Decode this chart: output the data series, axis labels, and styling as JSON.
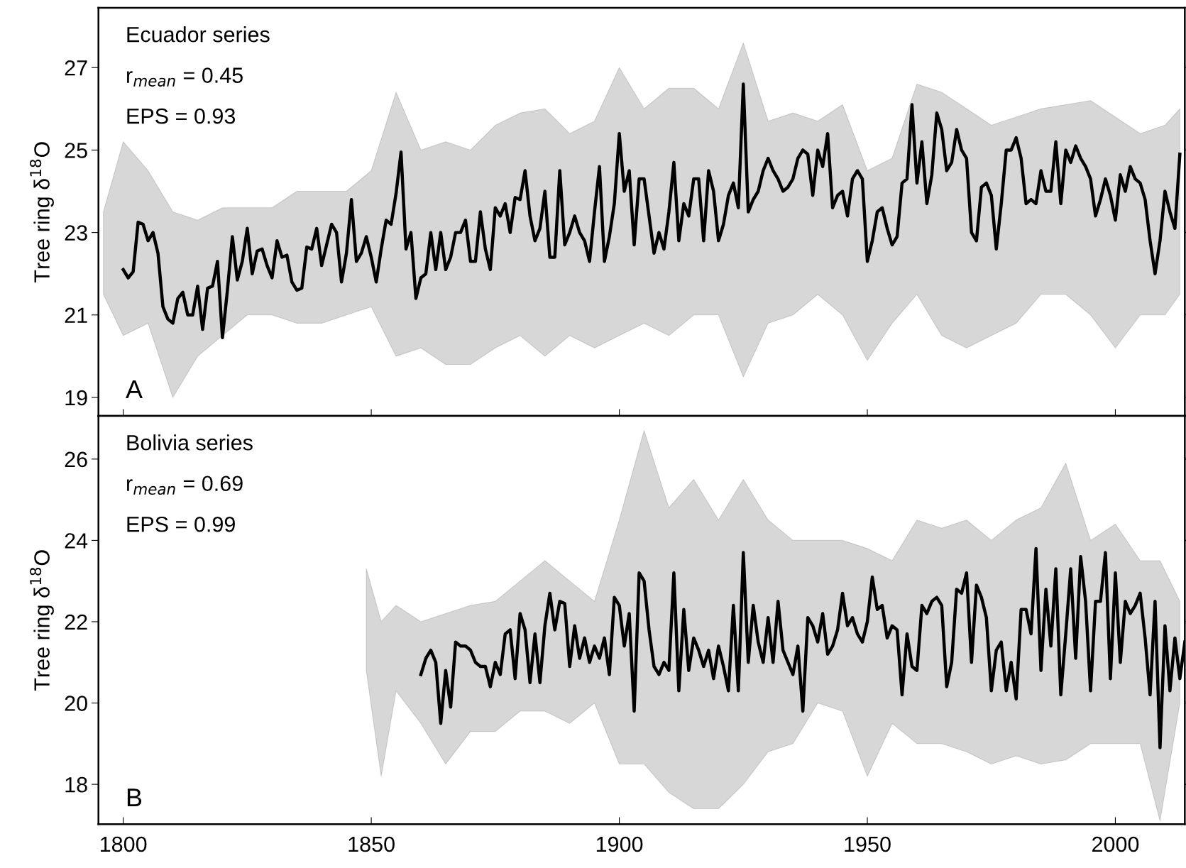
{
  "chart_data": [
    {
      "type": "line",
      "title": "Ecuador series",
      "ylabel": "Tree ring δ$^{18}$O",
      "annotations": [
        "r$_{mean}$ = 0.45",
        "EPS = 0.93",
        "A"
      ],
      "xlim": [
        1795,
        2014
      ],
      "xticks": [
        1800,
        1850,
        1900,
        1950,
        2000
      ],
      "ylim": [
        18.55,
        28.45
      ],
      "yticks": [
        19,
        21,
        23,
        25,
        27
      ],
      "tick_labels": "y",
      "grid": false,
      "legend": false,
      "series": [
        {
          "type": "area",
          "color": "#8c8c8c",
          "values": [
            null,
            null,
            null,
            null,
            null,
            null,
            null,
            null,
            null,
            null,
            null,
            null,
            null,
            null,
            null,
            null,
            null,
            null,
            null,
            null,
            null,
            null,
            null,
            null,
            null,
            null,
            null,
            null,
            null,
            null,
            null,
            null,
            null,
            null,
            null,
            null,
            null,
            null,
            null,
            null,
            null,
            null,
            null,
            null,
            null
          ],
          "x": [
            1796,
            1800,
            1805,
            1810,
            1815,
            1820,
            1825,
            1830,
            1835,
            1840,
            1845,
            1850,
            1855,
            1860,
            1865,
            1870,
            1875,
            1880,
            1885,
            1890,
            1895,
            1900,
            1905,
            1910,
            1915,
            1920,
            1925,
            1930,
            1935,
            1940,
            1945,
            1950,
            1955,
            1960,
            1965,
            1970,
            1975,
            1980,
            1985,
            1990,
            1995,
            2000,
            2005,
            2010,
            2013
          ],
          "lower": [
            21.5,
            20.5,
            20.8,
            19.0,
            20.0,
            20.5,
            21.0,
            21.0,
            20.8,
            20.8,
            21.0,
            21.2,
            20.0,
            20.2,
            19.8,
            19.8,
            20.2,
            20.5,
            20.0,
            20.5,
            20.2,
            20.5,
            20.8,
            20.5,
            21.0,
            21.0,
            19.5,
            20.8,
            21.0,
            21.5,
            21.0,
            19.9,
            20.8,
            21.5,
            20.5,
            20.2,
            20.5,
            20.8,
            21.5,
            21.5,
            21.0,
            20.2,
            21.0,
            21.0,
            21.5
          ],
          "upper": [
            23.5,
            25.2,
            24.5,
            23.5,
            23.3,
            23.6,
            23.6,
            23.6,
            24.0,
            24.0,
            24.0,
            24.5,
            26.4,
            25.0,
            25.2,
            25.0,
            25.6,
            25.9,
            26.0,
            25.4,
            25.7,
            27.0,
            26.0,
            26.5,
            26.5,
            26.0,
            27.6,
            25.7,
            25.9,
            25.7,
            26.1,
            24.5,
            24.8,
            26.6,
            26.4,
            26.0,
            25.6,
            25.8,
            26.0,
            26.1,
            26.2,
            25.8,
            25.4,
            25.6,
            26.0
          ]
        },
        {
          "color": "#000000",
          "x": [
            1800,
            1801,
            1802,
            1803,
            1804,
            1805,
            1806,
            1807,
            1808,
            1809,
            1810,
            1811,
            1812,
            1813,
            1814,
            1815,
            1816,
            1817,
            1818,
            1819,
            1820,
            1821,
            1822,
            1823,
            1824,
            1825,
            1826,
            1827,
            1828,
            1829,
            1830,
            1831,
            1832,
            1833,
            1834,
            1835,
            1836,
            1837,
            1838,
            1839,
            1840,
            1841,
            1842,
            1843,
            1844,
            1845,
            1846,
            1847,
            1848,
            1849,
            1850,
            1851,
            1852,
            1853,
            1854,
            1855,
            1856,
            1857,
            1858,
            1859,
            1860,
            1861,
            1862,
            1863,
            1864,
            1865,
            1866,
            1867,
            1868,
            1869,
            1870,
            1871,
            1872,
            1873,
            1874,
            1875,
            1876,
            1877,
            1878,
            1879,
            1880,
            1881,
            1882,
            1883,
            1884,
            1885,
            1886,
            1887,
            1888,
            1889,
            1890,
            1891,
            1892,
            1893,
            1894,
            1895,
            1896,
            1897,
            1898,
            1899,
            1900,
            1901,
            1902,
            1903,
            1904,
            1905,
            1906,
            1907,
            1908,
            1909,
            1910,
            1911,
            1912,
            1913,
            1914,
            1915,
            1916,
            1917,
            1918,
            1919,
            1920,
            1921,
            1922,
            1923,
            1924,
            1925,
            1926,
            1927,
            1928,
            1929,
            1930,
            1931,
            1932,
            1933,
            1934,
            1935,
            1936,
            1937,
            1938,
            1939,
            1940,
            1941,
            1942,
            1943,
            1944,
            1945,
            1946,
            1947,
            1948,
            1949,
            1950,
            1951,
            1952,
            1953,
            1954,
            1955,
            1956,
            1957,
            1958,
            1959,
            1960,
            1961,
            1962,
            1963,
            1964,
            1965,
            1966,
            1967,
            1968,
            1969,
            1970,
            1971,
            1972,
            1973,
            1974,
            1975,
            1976,
            1977,
            1978,
            1979,
            1980,
            1981,
            1982,
            1983,
            1984,
            1985,
            1986,
            1987,
            1988,
            1989,
            1990,
            1991,
            1992,
            1993,
            1994,
            1995,
            1996,
            1997,
            1998,
            1999,
            2000,
            2001,
            2002,
            2003,
            2004,
            2005,
            2006,
            2007,
            2008,
            2009,
            2010,
            2011,
            2012,
            2013
          ],
          "values": [
            22.1,
            21.9,
            22.05,
            23.25,
            23.2,
            22.8,
            23.0,
            22.5,
            21.2,
            20.9,
            20.8,
            21.4,
            21.55,
            21.0,
            21.0,
            21.7,
            20.65,
            21.65,
            21.7,
            22.3,
            20.45,
            21.6,
            22.9,
            21.85,
            22.3,
            23.1,
            22.0,
            22.55,
            22.6,
            22.2,
            21.9,
            22.8,
            22.4,
            22.45,
            21.8,
            21.6,
            21.65,
            22.65,
            22.6,
            23.1,
            22.2,
            22.7,
            23.2,
            23.0,
            21.8,
            22.5,
            23.8,
            22.3,
            22.5,
            22.9,
            22.4,
            21.8,
            22.6,
            23.3,
            23.2,
            23.95,
            24.95,
            22.6,
            23.0,
            21.4,
            21.9,
            22.0,
            23.0,
            22.1,
            23.0,
            22.1,
            22.4,
            23.0,
            23.0,
            23.3,
            22.3,
            22.3,
            23.5,
            22.6,
            22.1,
            23.6,
            23.4,
            23.7,
            23.0,
            23.85,
            23.8,
            24.5,
            23.4,
            22.8,
            23.1,
            24.0,
            22.4,
            22.4,
            24.5,
            22.7,
            23.0,
            23.4,
            23.0,
            22.8,
            22.3,
            23.5,
            24.6,
            22.3,
            22.9,
            23.7,
            25.4,
            24.0,
            24.5,
            22.7,
            24.3,
            24.3,
            23.4,
            22.5,
            23.0,
            22.6,
            23.5,
            24.7,
            22.8,
            23.7,
            23.4,
            24.3,
            24.3,
            22.8,
            24.5,
            24.0,
            22.8,
            23.2,
            23.9,
            24.2,
            23.6,
            26.6,
            23.5,
            23.8,
            24.0,
            24.5,
            24.8,
            24.5,
            24.3,
            24.0,
            24.1,
            24.3,
            24.8,
            25.0,
            24.9,
            23.9,
            25.0,
            24.6,
            25.4,
            23.6,
            23.9,
            24.0,
            23.4,
            24.3,
            24.5,
            24.3,
            22.3,
            22.8,
            23.5,
            23.6,
            23.1,
            22.7,
            22.9,
            24.2,
            24.3,
            26.1,
            24.2,
            25.2,
            23.7,
            24.4,
            25.9,
            25.5,
            24.5,
            24.7,
            25.5,
            25.0,
            24.8,
            23.0,
            22.8,
            24.1,
            24.2,
            23.9,
            22.6,
            23.7,
            25.0,
            25.0,
            25.3,
            24.8,
            23.7,
            23.8,
            23.7,
            24.5,
            24.0,
            24.0,
            25.2,
            23.7,
            25.0,
            24.7,
            25.1,
            24.8,
            24.6,
            24.3,
            23.4,
            23.8,
            24.3,
            23.9,
            23.3,
            24.4,
            24.0,
            24.6,
            24.3,
            24.2,
            23.8,
            22.8,
            22.0,
            22.8,
            24.0,
            23.5,
            23.1,
            24.9
          ]
        }
      ]
    },
    {
      "type": "line",
      "title": "Bolivia series",
      "ylabel": "Tree ring δ$^{18}$O",
      "annotations": [
        "r$_{mean}$ = 0.69",
        "EPS = 0.99",
        "B"
      ],
      "xlim": [
        1795,
        2014
      ],
      "xticks": [
        1800,
        1850,
        1900,
        1950,
        2000
      ],
      "ylim": [
        17.02,
        27.06
      ],
      "yticks": [
        18,
        20,
        22,
        24,
        26
      ],
      "grid": false,
      "legend": false,
      "series": [
        {
          "type": "area",
          "color": "#8c8c8c",
          "values": [
            null,
            null,
            null,
            null,
            null,
            null,
            null,
            null,
            null,
            null,
            null,
            null,
            null,
            null,
            null,
            null,
            null,
            null,
            null,
            null,
            null,
            null,
            null,
            null,
            null,
            null,
            null,
            null,
            null,
            null,
            null,
            null,
            null,
            null,
            null
          ],
          "x": [
            1849,
            1852,
            1855,
            1860,
            1865,
            1870,
            1875,
            1880,
            1885,
            1890,
            1895,
            1900,
            1905,
            1910,
            1915,
            1920,
            1925,
            1930,
            1935,
            1940,
            1945,
            1950,
            1955,
            1960,
            1965,
            1970,
            1975,
            1980,
            1985,
            1990,
            1995,
            2000,
            2005,
            2009,
            2013
          ],
          "lower": [
            20.8,
            18.2,
            20.3,
            19.5,
            18.5,
            19.3,
            19.3,
            19.8,
            19.8,
            19.5,
            20.0,
            18.5,
            18.5,
            17.8,
            17.4,
            17.4,
            18.0,
            18.8,
            19.0,
            20.0,
            19.8,
            18.2,
            19.5,
            19.0,
            19.0,
            18.8,
            18.5,
            18.7,
            18.5,
            18.6,
            19.0,
            19.0,
            19.0,
            17.1,
            20.0
          ],
          "upper": [
            23.3,
            22.0,
            22.4,
            22.0,
            22.2,
            22.4,
            22.5,
            23.0,
            23.5,
            23.0,
            22.5,
            24.5,
            26.7,
            24.8,
            25.5,
            24.5,
            25.5,
            24.5,
            24.0,
            24.0,
            24.0,
            23.8,
            23.5,
            24.5,
            24.3,
            24.5,
            24.0,
            24.5,
            24.8,
            25.9,
            24.0,
            24.4,
            23.5,
            23.5,
            22.5
          ]
        },
        {
          "color": "#000000",
          "x": [
            1860,
            1861,
            1862,
            1863,
            1864,
            1865,
            1866,
            1867,
            1868,
            1869,
            1870,
            1871,
            1872,
            1873,
            1874,
            1875,
            1876,
            1877,
            1878,
            1879,
            1880,
            1881,
            1882,
            1883,
            1884,
            1885,
            1886,
            1887,
            1888,
            1889,
            1890,
            1891,
            1892,
            1893,
            1894,
            1895,
            1896,
            1897,
            1898,
            1899,
            1900,
            1901,
            1902,
            1903,
            1904,
            1905,
            1906,
            1907,
            1908,
            1909,
            1910,
            1911,
            1912,
            1913,
            1914,
            1915,
            1916,
            1917,
            1918,
            1919,
            1920,
            1921,
            1922,
            1923,
            1924,
            1925,
            1926,
            1927,
            1928,
            1929,
            1930,
            1931,
            1932,
            1933,
            1934,
            1935,
            1936,
            1937,
            1938,
            1939,
            1940,
            1941,
            1942,
            1943,
            1944,
            1945,
            1946,
            1947,
            1948,
            1949,
            1950,
            1951,
            1952,
            1953,
            1954,
            1955,
            1956,
            1957,
            1958,
            1959,
            1960,
            1961,
            1962,
            1963,
            1964,
            1965,
            1966,
            1967,
            1968,
            1969,
            1970,
            1971,
            1972,
            1973,
            1974,
            1975,
            1976,
            1977,
            1978,
            1979,
            1980,
            1981,
            1982,
            1983,
            1984,
            1985,
            1986,
            1987,
            1988,
            1989,
            1990,
            1991,
            1992,
            1993,
            1994,
            1995,
            1996,
            1997,
            1998,
            1999,
            2000,
            2001,
            2002,
            2003,
            2004,
            2005,
            2006,
            2007,
            2008,
            2009,
            2010,
            2011,
            2012,
            2013,
            2014
          ],
          "values": [
            20.7,
            21.1,
            21.3,
            21.0,
            19.5,
            20.8,
            19.9,
            21.5,
            21.4,
            21.4,
            21.3,
            21.0,
            20.9,
            20.9,
            20.4,
            21.0,
            20.7,
            21.7,
            21.8,
            20.6,
            22.2,
            21.8,
            20.5,
            21.7,
            20.5,
            21.9,
            22.7,
            21.8,
            22.5,
            22.45,
            20.9,
            21.9,
            21.1,
            21.6,
            21.0,
            21.4,
            21.1,
            21.6,
            20.7,
            22.6,
            22.4,
            21.4,
            22.2,
            19.8,
            23.2,
            23.0,
            21.8,
            20.9,
            20.7,
            21.0,
            20.8,
            23.2,
            20.3,
            22.3,
            20.8,
            21.6,
            21.3,
            20.9,
            21.3,
            20.6,
            21.4,
            20.9,
            20.3,
            22.4,
            20.3,
            23.7,
            21.0,
            22.4,
            21.5,
            21.0,
            22.1,
            21.0,
            22.5,
            21.3,
            21.0,
            20.7,
            21.4,
            19.8,
            22.1,
            21.9,
            21.5,
            22.2,
            21.2,
            21.4,
            21.8,
            22.7,
            21.9,
            22.1,
            21.7,
            21.5,
            22.0,
            23.1,
            22.3,
            22.4,
            21.6,
            21.9,
            21.8,
            20.2,
            21.7,
            20.9,
            20.8,
            22.4,
            22.2,
            22.5,
            22.6,
            22.4,
            20.4,
            21.0,
            22.8,
            22.7,
            23.2,
            21.0,
            22.9,
            22.6,
            22.1,
            20.3,
            21.3,
            21.5,
            20.3,
            21.0,
            20.1,
            22.3,
            22.3,
            21.7,
            23.8,
            20.8,
            22.8,
            21.4,
            23.3,
            20.2,
            21.7,
            23.3,
            21.1,
            23.6,
            22.5,
            20.3,
            22.5,
            22.5,
            23.7,
            20.6,
            23.2,
            21.0,
            22.5,
            22.2,
            22.4,
            22.7,
            21.6,
            20.2,
            22.5,
            18.9,
            21.9,
            20.3,
            21.6,
            20.6,
            21.5
          ]
        }
      ]
    }
  ]
}
